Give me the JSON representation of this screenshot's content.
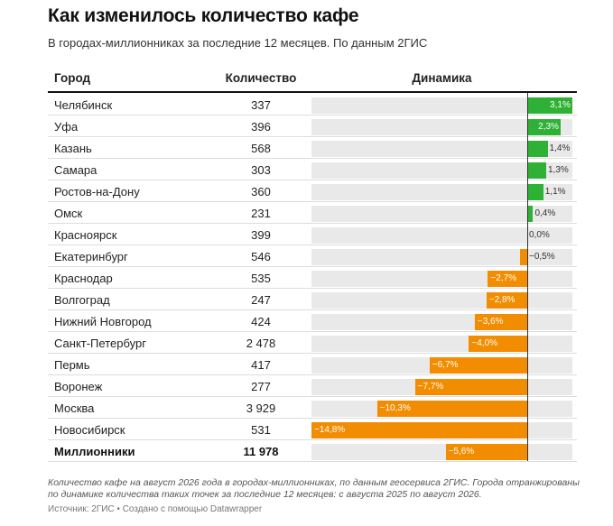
{
  "header": {
    "title": "Как изменилось количество кафе",
    "subtitle": "В городах-миллионниках за последние 12 месяцев. По данным 2ГИС"
  },
  "table_headers": {
    "city": "Город",
    "count": "Количество",
    "dynamics": "Динамика"
  },
  "colors": {
    "positive": "#2eb135",
    "negative": "#f28c00",
    "track": "#e9e9e9"
  },
  "chart_data": {
    "type": "bar",
    "orientation": "horizontal",
    "title": "Как изменилось количество кафе",
    "subtitle": "В городах-миллионниках за последние 12 месяцев. По данным 2ГИС",
    "columns": [
      "Город",
      "Количество",
      "Динамика"
    ],
    "xlim": [
      -14.8,
      3.6
    ],
    "rows": [
      {
        "city": "Челябинск",
        "count": "337",
        "value": 3.1,
        "label": "3,1%"
      },
      {
        "city": "Уфа",
        "count": "396",
        "value": 2.3,
        "label": "2,3%"
      },
      {
        "city": "Казань",
        "count": "568",
        "value": 1.4,
        "label": "1,4%"
      },
      {
        "city": "Самара",
        "count": "303",
        "value": 1.3,
        "label": "1,3%"
      },
      {
        "city": "Ростов-на-Дону",
        "count": "360",
        "value": 1.1,
        "label": "1,1%"
      },
      {
        "city": "Омск",
        "count": "231",
        "value": 0.4,
        "label": "0,4%"
      },
      {
        "city": "Красноярск",
        "count": "399",
        "value": 0.0,
        "label": "0,0%"
      },
      {
        "city": "Екатеринбург",
        "count": "546",
        "value": -0.5,
        "label": "−0,5%"
      },
      {
        "city": "Краснодар",
        "count": "535",
        "value": -2.7,
        "label": "−2,7%"
      },
      {
        "city": "Волгоград",
        "count": "247",
        "value": -2.8,
        "label": "−2,8%"
      },
      {
        "city": "Нижний Новгород",
        "count": "424",
        "value": -3.6,
        "label": "−3,6%"
      },
      {
        "city": "Санкт-Петербург",
        "count": "2 478",
        "value": -4.0,
        "label": "−4,0%"
      },
      {
        "city": "Пермь",
        "count": "417",
        "value": -6.7,
        "label": "−6,7%"
      },
      {
        "city": "Воронеж",
        "count": "277",
        "value": -7.7,
        "label": "−7,7%"
      },
      {
        "city": "Москва",
        "count": "3 929",
        "value": -10.3,
        "label": "−10,3%"
      },
      {
        "city": "Новосибирск",
        "count": "531",
        "value": -14.8,
        "label": "−14,8%"
      },
      {
        "city": "Миллионники",
        "count": "11 978",
        "value": -5.6,
        "label": "−5,6%",
        "total": true
      }
    ]
  },
  "footer": {
    "note": "Количество кафе на август 2026 года в городах-миллионниках, по данным геосервиса 2ГИС. Города отранжированы по динамике количества таких точек за последние 12 месяцев: с августа 2025 по август 2026.",
    "source": "Источник: 2ГИС • Создано с помощью Datawrapper"
  }
}
